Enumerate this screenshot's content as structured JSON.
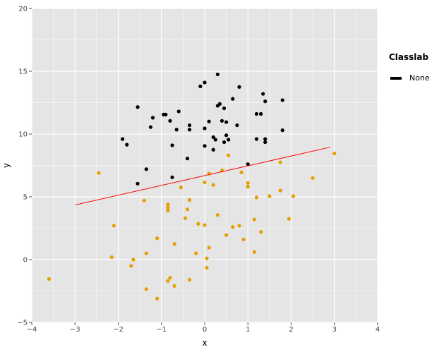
{
  "chart_data": {
    "type": "scatter",
    "title": "",
    "xlabel": "x",
    "ylabel": "y",
    "xlim": [
      -4,
      4
    ],
    "ylim": [
      -5,
      20
    ],
    "xticks": [
      -4,
      -3,
      -2,
      -1,
      0,
      1,
      2,
      3,
      4
    ],
    "yticks": [
      -5,
      0,
      5,
      10,
      15,
      20
    ],
    "grid": true,
    "legend": {
      "title": "Classlab",
      "placement": "right",
      "entries": [
        {
          "label": "None",
          "color": "#000000"
        }
      ]
    },
    "colors": {
      "panel_background": "#e5e5e5",
      "grid": "#ffffff",
      "class_a": "#000000",
      "class_b": "#e69f00",
      "line": "#ff0000"
    },
    "regression_line": {
      "x": [
        -3.0,
        2.9
      ],
      "y": [
        4.35,
        8.95
      ]
    },
    "series": [
      {
        "color": "#000000",
        "points": [
          [
            0.3,
            14.75
          ],
          [
            -0.1,
            13.8
          ],
          [
            0.0,
            14.1
          ],
          [
            0.8,
            13.75
          ],
          [
            1.35,
            13.2
          ],
          [
            1.4,
            12.6
          ],
          [
            1.8,
            12.7
          ],
          [
            0.65,
            12.8
          ],
          [
            0.35,
            12.4
          ],
          [
            0.3,
            12.25
          ],
          [
            0.45,
            12.05
          ],
          [
            -1.55,
            12.15
          ],
          [
            -0.6,
            11.8
          ],
          [
            -0.95,
            11.55
          ],
          [
            -0.9,
            11.55
          ],
          [
            -1.2,
            11.3
          ],
          [
            1.2,
            11.6
          ],
          [
            1.3,
            11.6
          ],
          [
            0.4,
            11.05
          ],
          [
            0.5,
            10.95
          ],
          [
            0.1,
            11.0
          ],
          [
            -0.8,
            11.05
          ],
          [
            -0.35,
            10.7
          ],
          [
            -1.25,
            10.55
          ],
          [
            -0.65,
            10.35
          ],
          [
            -0.35,
            10.35
          ],
          [
            0.0,
            10.45
          ],
          [
            0.75,
            10.7
          ],
          [
            1.8,
            10.3
          ],
          [
            -1.9,
            9.6
          ],
          [
            -1.8,
            9.15
          ],
          [
            -0.75,
            9.1
          ],
          [
            0.2,
            9.75
          ],
          [
            0.25,
            9.55
          ],
          [
            0.5,
            9.9
          ],
          [
            0.45,
            9.35
          ],
          [
            0.55,
            9.55
          ],
          [
            1.2,
            9.6
          ],
          [
            1.4,
            9.35
          ],
          [
            1.4,
            9.6
          ],
          [
            0.0,
            9.05
          ],
          [
            0.2,
            8.75
          ],
          [
            -0.4,
            8.05
          ],
          [
            -1.35,
            7.2
          ],
          [
            -0.75,
            6.55
          ],
          [
            -1.55,
            6.05
          ],
          [
            1.0,
            7.6
          ]
        ]
      },
      {
        "color": "#e69f00",
        "points": [
          [
            3.0,
            8.45
          ],
          [
            1.75,
            7.75
          ],
          [
            0.55,
            8.3
          ],
          [
            -2.45,
            6.9
          ],
          [
            0.4,
            7.1
          ],
          [
            0.1,
            6.85
          ],
          [
            0.85,
            6.95
          ],
          [
            2.5,
            6.5
          ],
          [
            -0.55,
            5.75
          ],
          [
            0.0,
            6.15
          ],
          [
            0.2,
            5.95
          ],
          [
            1.0,
            6.1
          ],
          [
            1.0,
            5.8
          ],
          [
            1.75,
            5.5
          ],
          [
            1.2,
            4.95
          ],
          [
            1.5,
            5.05
          ],
          [
            2.05,
            5.05
          ],
          [
            -1.4,
            4.7
          ],
          [
            -0.35,
            4.75
          ],
          [
            -0.85,
            4.4
          ],
          [
            -0.85,
            3.9
          ],
          [
            -0.85,
            4.15
          ],
          [
            -0.4,
            4.0
          ],
          [
            -0.45,
            3.3
          ],
          [
            0.3,
            3.55
          ],
          [
            1.15,
            3.2
          ],
          [
            1.95,
            3.25
          ],
          [
            -2.1,
            2.7
          ],
          [
            -0.15,
            2.85
          ],
          [
            0.0,
            2.75
          ],
          [
            0.65,
            2.6
          ],
          [
            0.8,
            2.7
          ],
          [
            1.3,
            2.2
          ],
          [
            0.5,
            1.95
          ],
          [
            -1.1,
            1.7
          ],
          [
            0.9,
            1.6
          ],
          [
            -0.7,
            1.25
          ],
          [
            0.1,
            0.95
          ],
          [
            -1.35,
            0.5
          ],
          [
            -0.2,
            0.5
          ],
          [
            1.15,
            0.6
          ],
          [
            -2.15,
            0.2
          ],
          [
            -1.65,
            0.0
          ],
          [
            0.05,
            0.1
          ],
          [
            -1.7,
            -0.5
          ],
          [
            0.05,
            -0.65
          ],
          [
            -3.6,
            -1.55
          ],
          [
            -0.8,
            -1.45
          ],
          [
            -0.35,
            -1.6
          ],
          [
            -0.85,
            -1.7
          ],
          [
            -0.7,
            -2.1
          ],
          [
            -1.35,
            -2.35
          ],
          [
            -1.1,
            -3.1
          ]
        ]
      }
    ]
  }
}
